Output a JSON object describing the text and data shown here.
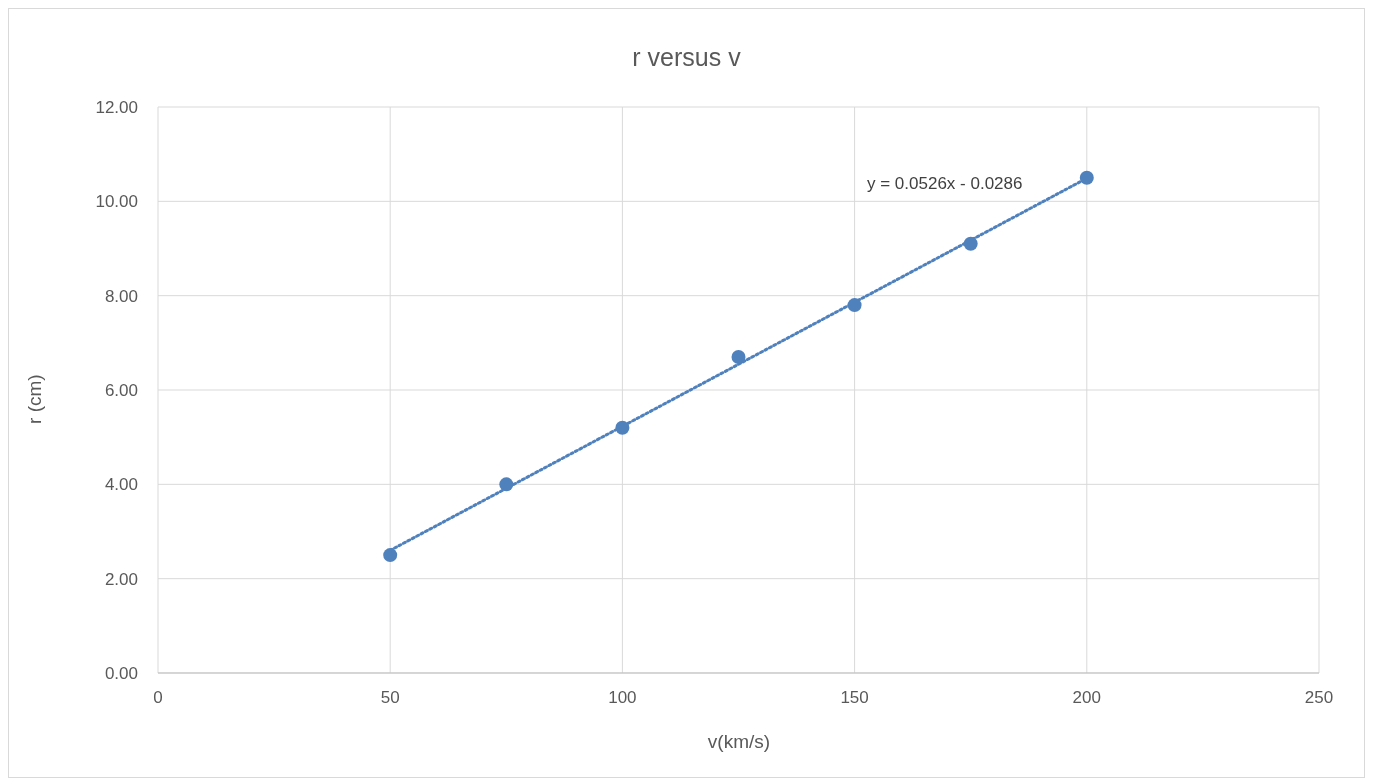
{
  "chart_data": {
    "type": "scatter",
    "title": "r versus v",
    "xlabel": "v(km/s)",
    "ylabel": "r (cm)",
    "x": [
      50,
      75,
      100,
      125,
      150,
      175,
      200
    ],
    "series": [
      {
        "color": "#4f81bd",
        "marker": "circle",
        "values": [
          2.5,
          4.0,
          5.2,
          6.7,
          7.8,
          9.1,
          10.5
        ]
      },
      {
        "type": "line",
        "color": "#4f81bd",
        "line_style": "dotted",
        "marker": "none",
        "x": [
          50,
          200
        ],
        "values": [
          2.6,
          10.49
        ]
      }
    ],
    "annotations": [
      "y = 0.0526x - 0.0286"
    ],
    "xlim": [
      0,
      250
    ],
    "xticks": [
      0,
      50,
      100,
      150,
      200,
      250
    ],
    "ylim": [
      0,
      12
    ],
    "yticks": [
      {
        "value": 0,
        "label": "0.00"
      },
      {
        "value": 2,
        "label": "2.00"
      },
      {
        "value": 4,
        "label": "4.00"
      },
      {
        "value": 6,
        "label": "6.00"
      },
      {
        "value": 8,
        "label": "8.00"
      },
      {
        "value": 10,
        "label": "10.00"
      },
      {
        "value": 12,
        "label": "12.00"
      }
    ],
    "grid": true
  }
}
